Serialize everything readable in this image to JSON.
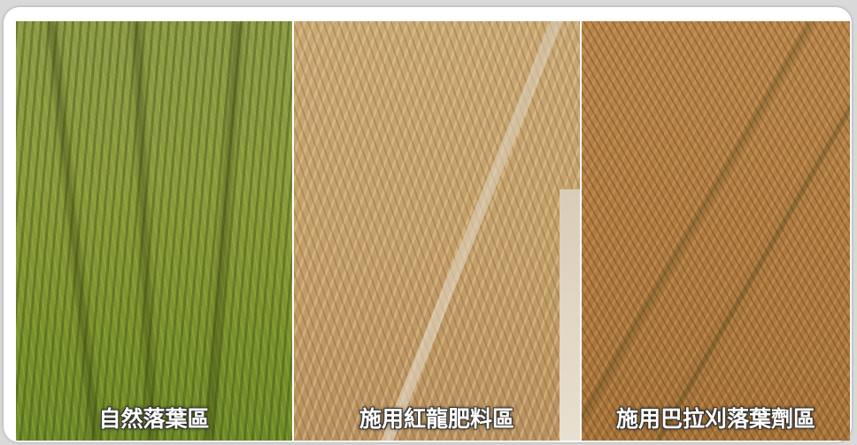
{
  "panels": [
    {
      "label": "自然落葉區"
    },
    {
      "label": "施用紅龍肥料區"
    },
    {
      "label": "施用巴拉刈落葉劑區"
    }
  ]
}
